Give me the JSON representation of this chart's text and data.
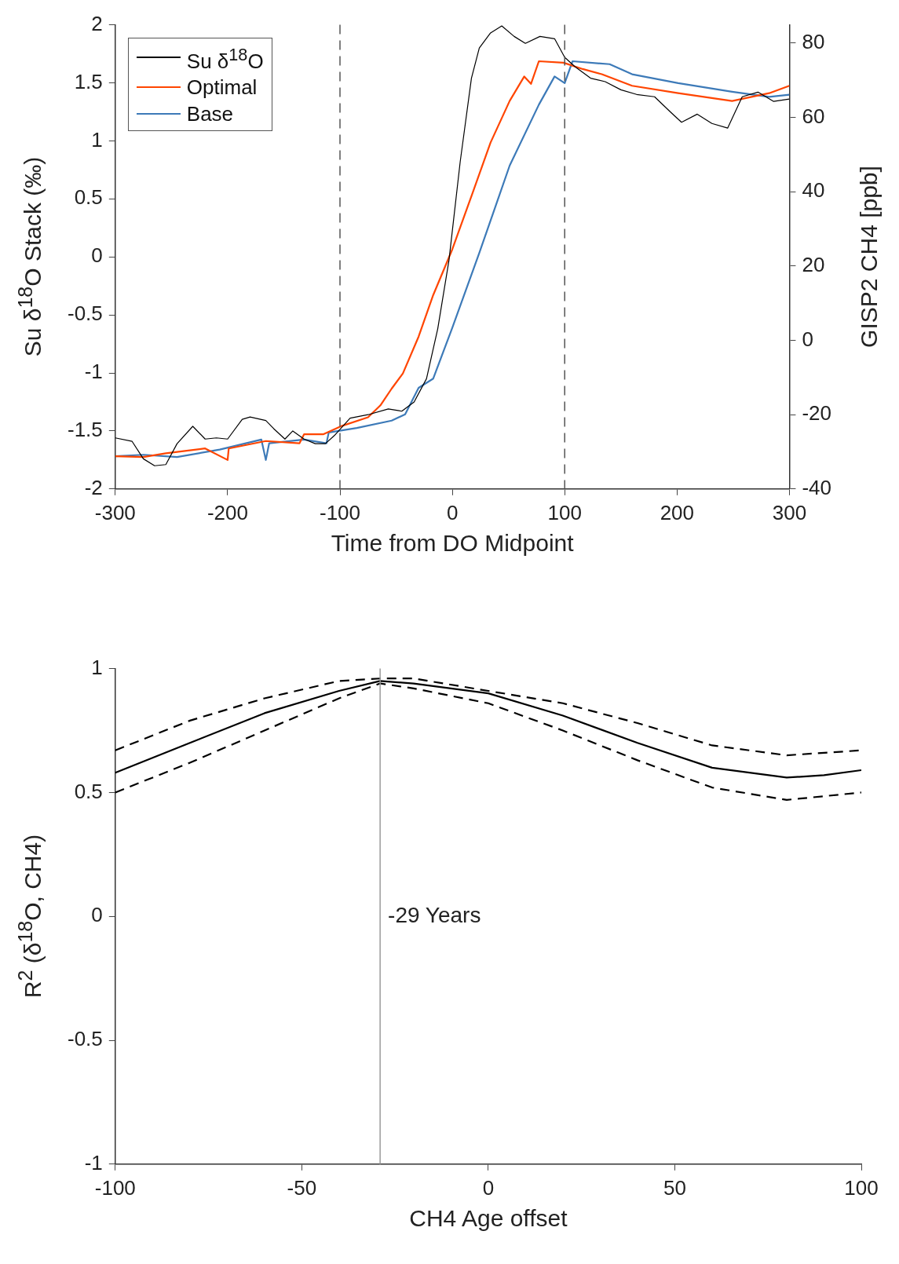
{
  "chart_data": [
    {
      "type": "line",
      "xlabel": "Time from DO Midpoint",
      "ylabel": "Su δ$^{18}$O Stack (‰)",
      "y2label": "GISP2 CH4 [ppb]",
      "xlim": [
        -300,
        300
      ],
      "xticks": [
        -300,
        -200,
        -100,
        0,
        100,
        200,
        300
      ],
      "ylim": [
        -2,
        2
      ],
      "yticks": [
        -2,
        -1.5,
        -1,
        -0.5,
        0,
        0.5,
        1,
        1.5,
        2
      ],
      "y2lim": [
        -40,
        84.9
      ],
      "y2ticks": [
        -40,
        -20,
        0,
        20,
        40,
        60,
        80
      ],
      "grid": false,
      "legend": "top left",
      "marker": "none",
      "ref_lines": [
        {
          "axis": "x",
          "value": -100,
          "color": "#555555",
          "line_style": "dashed"
        },
        {
          "axis": "x",
          "value": 100,
          "color": "#555555",
          "line_style": "dashed"
        }
      ],
      "series": [
        {
          "name": "Su δ$^{18}$O",
          "color": "#000000",
          "x": [
            -300,
            -285,
            -275,
            -265,
            -255,
            -245,
            -231,
            -220,
            -210,
            -200,
            -187,
            -180,
            -166,
            -159,
            -149,
            -142,
            -132,
            -122,
            -113,
            -105,
            -91,
            -75,
            -57,
            -45,
            -34,
            -23,
            -13,
            -3,
            7,
            17,
            24,
            34,
            44,
            55,
            65,
            78,
            91,
            100,
            109,
            123,
            136,
            150,
            164,
            180,
            194,
            204,
            218,
            231,
            245,
            258,
            272,
            286,
            300
          ],
          "values": [
            -1.56,
            -1.59,
            -1.74,
            -1.8,
            -1.79,
            -1.61,
            -1.46,
            -1.57,
            -1.56,
            -1.57,
            -1.4,
            -1.38,
            -1.41,
            -1.48,
            -1.57,
            -1.5,
            -1.57,
            -1.61,
            -1.61,
            -1.54,
            -1.39,
            -1.36,
            -1.31,
            -1.33,
            -1.25,
            -1.05,
            -0.62,
            -0.03,
            0.82,
            1.54,
            1.8,
            1.93,
            1.99,
            1.9,
            1.84,
            1.9,
            1.88,
            1.72,
            1.64,
            1.54,
            1.51,
            1.44,
            1.4,
            1.38,
            1.25,
            1.16,
            1.23,
            1.15,
            1.11,
            1.38,
            1.42,
            1.34,
            1.36
          ]
        },
        {
          "name": "Optimal",
          "color": "#ff4500",
          "axis": "y2",
          "x": [
            -300,
            -275,
            -255,
            -220,
            -200,
            -199,
            -166,
            -136,
            -132,
            -115,
            -98,
            -75,
            -64,
            -54,
            -44,
            -30,
            -17,
            0,
            17,
            34,
            51,
            64,
            70,
            77,
            99,
            116,
            133,
            160,
            201,
            249,
            282,
            300
          ],
          "values": [
            -31.2,
            -31.4,
            -30.4,
            -29.1,
            -32.2,
            -29.1,
            -27.1,
            -27.7,
            -25.3,
            -25.3,
            -23,
            -20.7,
            -17.5,
            -13,
            -8.9,
            1,
            12.2,
            24.5,
            38.8,
            53.2,
            64.4,
            71,
            69,
            75.1,
            74.7,
            73,
            71.6,
            68.5,
            66.5,
            64.4,
            66.5,
            68.5
          ]
        },
        {
          "name": "Base",
          "color": "#3d7ab8",
          "axis": "y2",
          "x": [
            -300,
            -275,
            -245,
            -207,
            -170,
            -166,
            -163,
            -132,
            -112,
            -110,
            -85,
            -54,
            -42,
            -30,
            -17,
            0,
            24,
            51,
            77,
            91,
            100,
            107,
            140,
            160,
            201,
            249,
            282,
            300
          ],
          "values": [
            -31.2,
            -30.8,
            -31.4,
            -29.4,
            -26.7,
            -32.2,
            -27.7,
            -26.7,
            -27.7,
            -24.8,
            -23.6,
            -21.6,
            -19.9,
            -12.8,
            -10.3,
            3.4,
            23.5,
            47,
            63.4,
            71,
            69.2,
            75.1,
            74.3,
            71.6,
            69.2,
            66.9,
            65.5,
            66.1
          ]
        }
      ]
    },
    {
      "type": "line",
      "xlabel": "CH4 Age offset",
      "ylabel": "R$^{2}$ (δ$^{18}$O, CH4)",
      "xlim": [
        -100,
        100
      ],
      "xticks": [
        -100,
        -50,
        0,
        50,
        100
      ],
      "ylim": [
        -1,
        1
      ],
      "yticks": [
        -1,
        -0.5,
        0,
        0.5,
        1
      ],
      "grid": false,
      "marker": "none",
      "ref_lines": [
        {
          "axis": "x",
          "value": -29,
          "label": "-29 Years",
          "color": "#999999",
          "line_style": "solid"
        }
      ],
      "series": [
        {
          "color": "#000000",
          "line_style": "solid",
          "x": [
            -100,
            -80,
            -60,
            -40,
            -29,
            -20,
            0,
            20,
            40,
            60,
            70,
            80,
            90,
            100
          ],
          "values": [
            0.58,
            0.7,
            0.82,
            0.91,
            0.95,
            0.94,
            0.9,
            0.81,
            0.7,
            0.6,
            0.58,
            0.56,
            0.57,
            0.59
          ]
        },
        {
          "color": "#000000",
          "line_style": "dashed",
          "x": [
            -100,
            -80,
            -60,
            -40,
            -29,
            -20,
            0,
            20,
            40,
            60,
            80,
            100
          ],
          "values": [
            0.67,
            0.79,
            0.88,
            0.95,
            0.96,
            0.96,
            0.91,
            0.86,
            0.78,
            0.69,
            0.65,
            0.67
          ]
        },
        {
          "color": "#000000",
          "line_style": "dashed",
          "x": [
            -100,
            -80,
            -60,
            -40,
            -29,
            -20,
            0,
            20,
            40,
            60,
            80,
            100
          ],
          "values": [
            0.5,
            0.62,
            0.75,
            0.88,
            0.94,
            0.92,
            0.86,
            0.75,
            0.63,
            0.52,
            0.47,
            0.5
          ]
        }
      ]
    }
  ]
}
